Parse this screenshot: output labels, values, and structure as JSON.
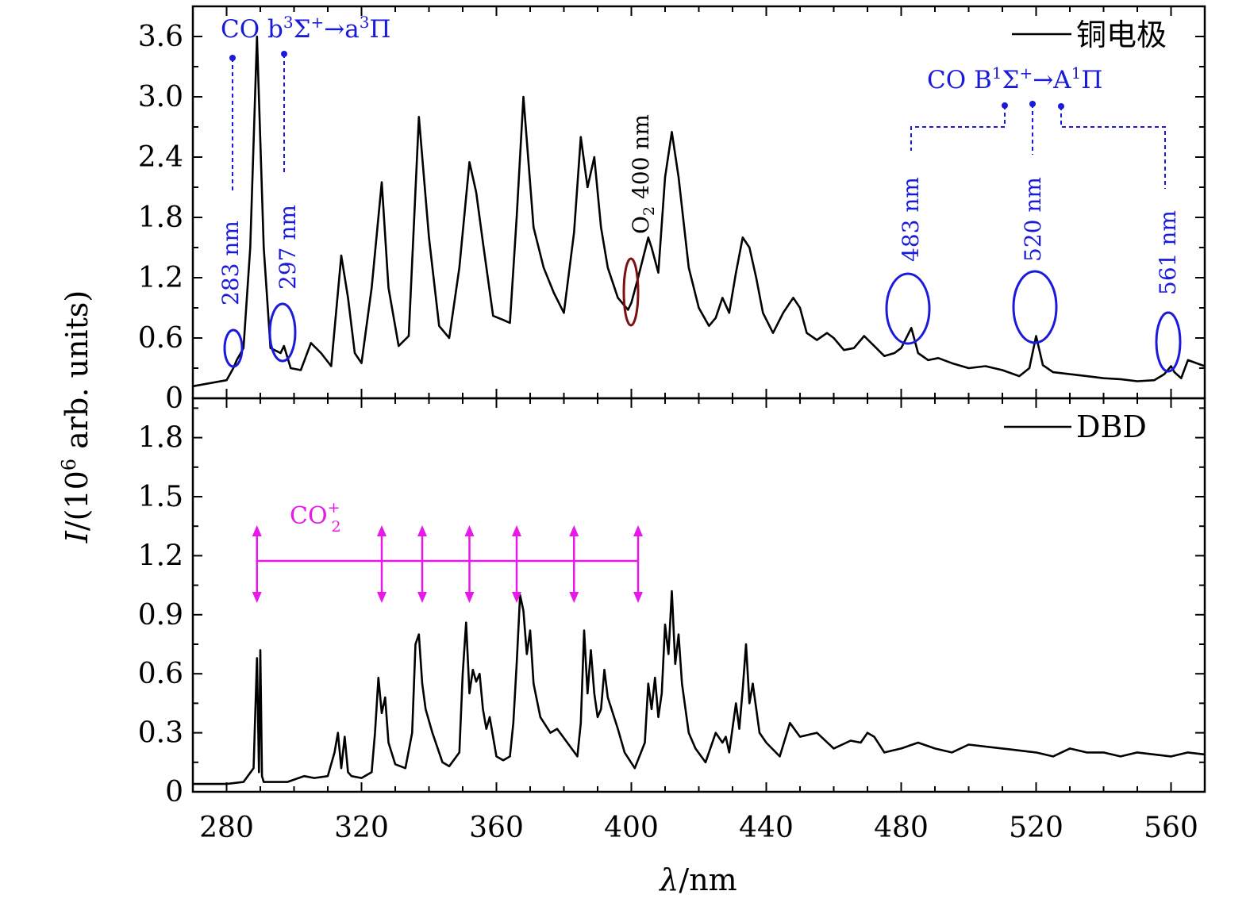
{
  "x_axis": {
    "label_var": "λ",
    "label_unit": "/nm",
    "ticks": [
      "280",
      "320",
      "360",
      "400",
      "440",
      "480",
      "520",
      "560"
    ]
  },
  "y_axis": {
    "label_var": "I",
    "label_prefix": "/(10",
    "label_sup": "6",
    "label_suffix": " arb. units)"
  },
  "top_panel": {
    "ticks": [
      "0",
      "0.6",
      "1.2",
      "1.8",
      "2.4",
      "3.0",
      "3.6"
    ],
    "legend": "铜电极",
    "co_third": {
      "prefix": "CO  b",
      "sup1": "3",
      "mid": "Σ",
      "sup2": "+",
      "arrow": "→a",
      "sup3": "3",
      "end": "Π"
    },
    "co_first": {
      "prefix": "CO  B",
      "sup1": "1",
      "mid": "Σ",
      "sup2": "+",
      "arrow": "→A",
      "sup3": "1",
      "end": "Π"
    },
    "peaks": [
      "283 nm",
      "297 nm",
      "483 nm",
      "520 nm",
      "561 nm"
    ],
    "o2": {
      "base": "O",
      "sub": "2",
      "rest": " 400 nm"
    }
  },
  "bottom_panel": {
    "ticks": [
      "0",
      "0.3",
      "0.6",
      "0.9",
      "1.2",
      "1.5",
      "1.8"
    ],
    "legend": "DBD",
    "co2_label": {
      "base": "CO",
      "sup": "+",
      "sub": "2"
    }
  },
  "colors": {
    "line": "#000000",
    "annotation_blue": "#1a1adb",
    "o2_ellipse": "#7a1010",
    "magenta": "#e619e6"
  },
  "chart_data": [
    {
      "type": "line",
      "legend": "铜电极",
      "xlim": [
        270,
        570
      ],
      "ylim": [
        0,
        3.9
      ],
      "x": [
        270,
        280,
        282,
        283,
        285,
        287,
        289,
        291,
        293,
        296,
        297,
        299,
        302,
        305,
        308,
        311,
        314,
        316,
        318,
        320,
        323,
        326,
        328,
        331,
        334,
        337,
        340,
        343,
        346,
        349,
        352,
        354,
        356,
        359,
        362,
        364,
        366,
        368,
        371,
        374,
        377,
        380,
        383,
        385,
        387,
        389,
        391,
        393,
        396,
        399,
        400,
        402,
        405,
        406,
        408,
        410,
        412,
        414,
        417,
        420,
        423,
        425,
        427,
        429,
        431,
        433,
        435,
        437,
        439,
        442,
        445,
        448,
        450,
        452,
        455,
        458,
        460,
        463,
        466,
        469,
        472,
        475,
        478,
        480,
        483,
        485,
        488,
        491,
        495,
        500,
        505,
        510,
        515,
        518,
        520,
        522,
        525,
        530,
        535,
        540,
        545,
        550,
        555,
        558,
        560,
        561,
        563,
        565,
        570
      ],
      "y": [
        0.12,
        0.18,
        0.3,
        0.38,
        0.5,
        1.5,
        3.6,
        1.5,
        0.5,
        0.45,
        0.52,
        0.3,
        0.28,
        0.55,
        0.45,
        0.32,
        1.42,
        1.0,
        0.45,
        0.35,
        1.1,
        2.15,
        1.1,
        0.52,
        0.62,
        2.8,
        1.6,
        0.72,
        0.6,
        1.3,
        2.35,
        2.05,
        1.55,
        0.82,
        0.78,
        0.75,
        1.8,
        3.0,
        1.7,
        1.3,
        1.05,
        0.85,
        1.65,
        2.6,
        2.1,
        2.4,
        1.7,
        1.3,
        1.0,
        0.88,
        0.95,
        1.2,
        1.6,
        1.5,
        1.25,
        2.2,
        2.65,
        2.2,
        1.3,
        0.9,
        0.72,
        0.8,
        1.0,
        0.85,
        1.25,
        1.6,
        1.5,
        1.2,
        0.85,
        0.65,
        0.85,
        1.0,
        0.9,
        0.65,
        0.58,
        0.65,
        0.6,
        0.48,
        0.5,
        0.62,
        0.52,
        0.42,
        0.45,
        0.5,
        0.7,
        0.45,
        0.38,
        0.4,
        0.35,
        0.3,
        0.32,
        0.28,
        0.22,
        0.3,
        0.62,
        0.33,
        0.26,
        0.24,
        0.22,
        0.2,
        0.19,
        0.17,
        0.18,
        0.24,
        0.32,
        0.26,
        0.2,
        0.38,
        0.32
      ]
    },
    {
      "type": "line",
      "legend": "DBD",
      "xlim": [
        270,
        570
      ],
      "ylim": [
        0,
        2.0
      ],
      "x": [
        270,
        280,
        285,
        288,
        289,
        289.6,
        290,
        290.5,
        291,
        293,
        298,
        303,
        306,
        310,
        312,
        313,
        314,
        315,
        316,
        317,
        320,
        323,
        324,
        325,
        326,
        327,
        328,
        330,
        333,
        335,
        336,
        337,
        338,
        339,
        341,
        344,
        346,
        349,
        350,
        351,
        352,
        353,
        354,
        355,
        356,
        357,
        358,
        360,
        362,
        364,
        365,
        366,
        367,
        368,
        369,
        370,
        371,
        373,
        376,
        378,
        381,
        384,
        385,
        386,
        387,
        388,
        389,
        390,
        391,
        392,
        393,
        396,
        398,
        401,
        404,
        405,
        406,
        407,
        408,
        409,
        410,
        411,
        412,
        413,
        414,
        415,
        417,
        419,
        422,
        425,
        427,
        428,
        429,
        431,
        432,
        433,
        434,
        435,
        436,
        438,
        440,
        444,
        447,
        450,
        455,
        460,
        465,
        468,
        470,
        472,
        475,
        480,
        485,
        490,
        495,
        500,
        510,
        520,
        525,
        530,
        535,
        540,
        545,
        550,
        555,
        560,
        565,
        570
      ],
      "y": [
        0.04,
        0.04,
        0.05,
        0.12,
        0.68,
        0.1,
        0.72,
        0.08,
        0.05,
        0.05,
        0.05,
        0.08,
        0.07,
        0.08,
        0.2,
        0.3,
        0.12,
        0.28,
        0.1,
        0.08,
        0.07,
        0.1,
        0.3,
        0.58,
        0.4,
        0.48,
        0.25,
        0.14,
        0.12,
        0.3,
        0.75,
        0.8,
        0.55,
        0.42,
        0.3,
        0.15,
        0.13,
        0.2,
        0.6,
        0.86,
        0.5,
        0.62,
        0.56,
        0.6,
        0.42,
        0.32,
        0.38,
        0.18,
        0.16,
        0.18,
        0.35,
        0.65,
        1.0,
        0.92,
        0.7,
        0.82,
        0.55,
        0.38,
        0.3,
        0.32,
        0.25,
        0.18,
        0.35,
        0.82,
        0.5,
        0.72,
        0.5,
        0.38,
        0.42,
        0.62,
        0.48,
        0.32,
        0.2,
        0.12,
        0.25,
        0.55,
        0.42,
        0.58,
        0.38,
        0.5,
        0.85,
        0.7,
        1.02,
        0.65,
        0.8,
        0.55,
        0.3,
        0.22,
        0.15,
        0.3,
        0.25,
        0.28,
        0.2,
        0.45,
        0.32,
        0.52,
        0.75,
        0.45,
        0.55,
        0.3,
        0.25,
        0.18,
        0.35,
        0.28,
        0.3,
        0.22,
        0.26,
        0.25,
        0.3,
        0.28,
        0.2,
        0.22,
        0.25,
        0.22,
        0.2,
        0.24,
        0.22,
        0.2,
        0.18,
        0.22,
        0.2,
        0.2,
        0.18,
        0.2,
        0.19,
        0.18,
        0.2,
        0.19
      ]
    }
  ]
}
